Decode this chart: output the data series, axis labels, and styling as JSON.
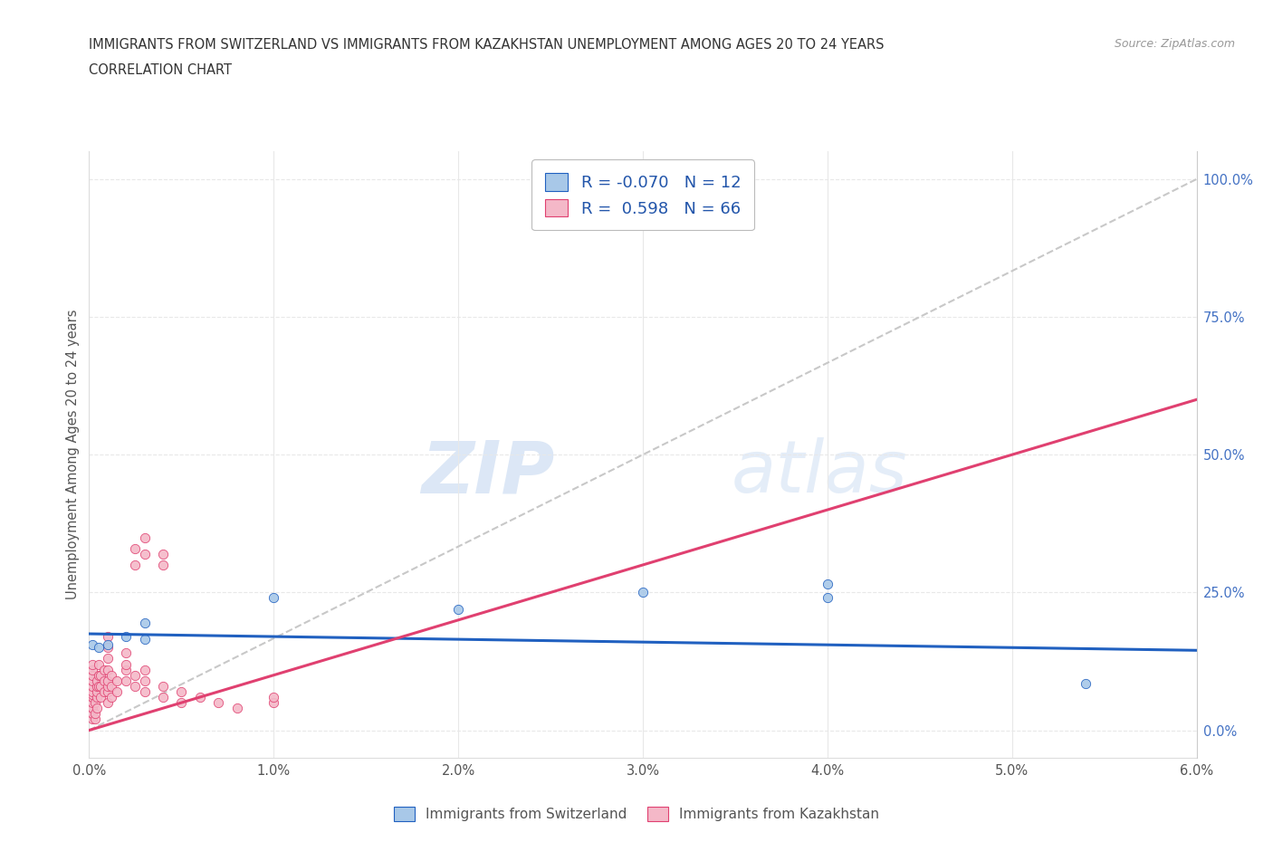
{
  "title_line1": "IMMIGRANTS FROM SWITZERLAND VS IMMIGRANTS FROM KAZAKHSTAN UNEMPLOYMENT AMONG AGES 20 TO 24 YEARS",
  "title_line2": "CORRELATION CHART",
  "source_text": "Source: ZipAtlas.com",
  "ylabel": "Unemployment Among Ages 20 to 24 years",
  "xlim": [
    0.0,
    0.06
  ],
  "ylim": [
    -0.05,
    1.05
  ],
  "xticks": [
    0.0,
    0.01,
    0.02,
    0.03,
    0.04,
    0.05,
    0.06
  ],
  "xtick_labels": [
    "0.0%",
    "1.0%",
    "2.0%",
    "3.0%",
    "4.0%",
    "5.0%",
    "6.0%"
  ],
  "yticks": [
    0.0,
    0.25,
    0.5,
    0.75,
    1.0
  ],
  "ytick_labels_right": [
    "0.0%",
    "25.0%",
    "50.0%",
    "75.0%",
    "100.0%"
  ],
  "switzerland_color": "#a8c8e8",
  "kazakhstan_color": "#f4b8c8",
  "switzerland_line_color": "#2060c0",
  "kazakhstan_line_color": "#e04070",
  "ref_line_color": "#c8c8c8",
  "R_switzerland": -0.07,
  "N_switzerland": 12,
  "R_kazakhstan": 0.598,
  "N_kazakhstan": 66,
  "legend_label_1": "Immigrants from Switzerland",
  "legend_label_2": "Immigrants from Kazakhstan",
  "watermark_zip": "ZIP",
  "watermark_atlas": "atlas",
  "background_color": "#ffffff",
  "grid_color": "#e8e8e8",
  "switzerland_scatter": [
    [
      0.0002,
      0.155
    ],
    [
      0.0005,
      0.15
    ],
    [
      0.001,
      0.155
    ],
    [
      0.002,
      0.17
    ],
    [
      0.003,
      0.165
    ],
    [
      0.003,
      0.195
    ],
    [
      0.01,
      0.24
    ],
    [
      0.02,
      0.22
    ],
    [
      0.03,
      0.25
    ],
    [
      0.04,
      0.24
    ],
    [
      0.04,
      0.265
    ],
    [
      0.054,
      0.085
    ]
  ],
  "kazakhstan_scatter": [
    [
      0.0002,
      0.02
    ],
    [
      0.0002,
      0.03
    ],
    [
      0.0002,
      0.04
    ],
    [
      0.0002,
      0.05
    ],
    [
      0.0002,
      0.06
    ],
    [
      0.0002,
      0.065
    ],
    [
      0.0002,
      0.07
    ],
    [
      0.0002,
      0.08
    ],
    [
      0.0002,
      0.09
    ],
    [
      0.0002,
      0.1
    ],
    [
      0.0002,
      0.11
    ],
    [
      0.0002,
      0.12
    ],
    [
      0.0003,
      0.02
    ],
    [
      0.0003,
      0.03
    ],
    [
      0.0003,
      0.05
    ],
    [
      0.0004,
      0.04
    ],
    [
      0.0004,
      0.06
    ],
    [
      0.0004,
      0.07
    ],
    [
      0.0004,
      0.08
    ],
    [
      0.0004,
      0.09
    ],
    [
      0.0005,
      0.08
    ],
    [
      0.0005,
      0.1
    ],
    [
      0.0005,
      0.12
    ],
    [
      0.0006,
      0.06
    ],
    [
      0.0006,
      0.08
    ],
    [
      0.0006,
      0.1
    ],
    [
      0.0008,
      0.07
    ],
    [
      0.0008,
      0.09
    ],
    [
      0.0008,
      0.11
    ],
    [
      0.001,
      0.05
    ],
    [
      0.001,
      0.07
    ],
    [
      0.001,
      0.08
    ],
    [
      0.001,
      0.09
    ],
    [
      0.001,
      0.11
    ],
    [
      0.001,
      0.13
    ],
    [
      0.001,
      0.15
    ],
    [
      0.001,
      0.17
    ],
    [
      0.0012,
      0.06
    ],
    [
      0.0012,
      0.08
    ],
    [
      0.0012,
      0.1
    ],
    [
      0.0015,
      0.07
    ],
    [
      0.0015,
      0.09
    ],
    [
      0.002,
      0.09
    ],
    [
      0.002,
      0.11
    ],
    [
      0.002,
      0.12
    ],
    [
      0.002,
      0.14
    ],
    [
      0.0025,
      0.08
    ],
    [
      0.0025,
      0.1
    ],
    [
      0.0025,
      0.3
    ],
    [
      0.0025,
      0.33
    ],
    [
      0.003,
      0.07
    ],
    [
      0.003,
      0.09
    ],
    [
      0.003,
      0.11
    ],
    [
      0.003,
      0.32
    ],
    [
      0.003,
      0.35
    ],
    [
      0.004,
      0.06
    ],
    [
      0.004,
      0.08
    ],
    [
      0.004,
      0.3
    ],
    [
      0.004,
      0.32
    ],
    [
      0.005,
      0.05
    ],
    [
      0.005,
      0.07
    ],
    [
      0.006,
      0.06
    ],
    [
      0.007,
      0.05
    ],
    [
      0.008,
      0.04
    ],
    [
      0.01,
      0.05
    ],
    [
      0.01,
      0.06
    ]
  ],
  "sw_trend_x": [
    0.0,
    0.06
  ],
  "sw_trend_y": [
    0.175,
    0.145
  ],
  "kz_trend_x": [
    0.0,
    0.06
  ],
  "kz_trend_y": [
    0.0,
    0.6
  ]
}
